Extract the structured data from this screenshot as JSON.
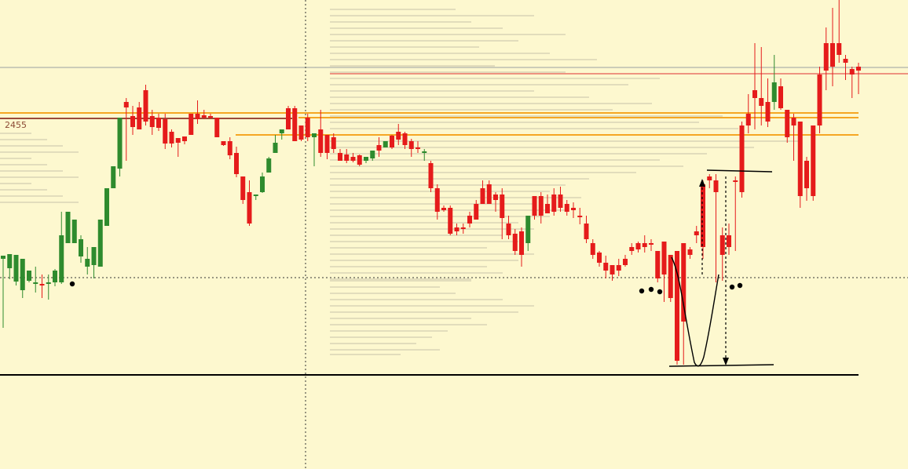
{
  "chart_data": {
    "type": "candlestick",
    "instrument_label": "2455",
    "colors": {
      "background": "#fdf8cf",
      "up_candle": "#2e8b2e",
      "down_candle": "#e51b1b",
      "volume_profile": "#c8c2a8",
      "crosshair": "#333333",
      "support_line": "#000000",
      "resistance_lines": "#f5a623",
      "upper_red_line": "#e03030",
      "brown_line": "#9b4a3a",
      "grey_line": "#9aa0a0"
    },
    "candles": [
      [
        418,
        330,
        326,
        360,
        356
      ],
      [
        345,
        342,
        324,
        356,
        350
      ],
      [
        352,
        359,
        325,
        364,
        358
      ],
      [
        378,
        370,
        330,
        380,
        380
      ],
      [
        350,
        358,
        345,
        360,
        355
      ],
      [
        340,
        362,
        360,
        373,
        370
      ],
      [
        350,
        362,
        362,
        377,
        380
      ],
      [
        350,
        362,
        360,
        380,
        382
      ],
      [
        343,
        360,
        345,
        365,
        360
      ],
      [
        270,
        360,
        300,
        362,
        345
      ],
      [
        300,
        310,
        270,
        285,
        280
      ],
      [
        282,
        310,
        280,
        285,
        305
      ],
      [
        300,
        327,
        305,
        335,
        300
      ],
      [
        315,
        340,
        330,
        350,
        340
      ],
      [
        320,
        338,
        315,
        355,
        335
      ],
      [
        330,
        340,
        280,
        340,
        280
      ],
      [
        282,
        288,
        240,
        285,
        240
      ],
      [
        238,
        240,
        212,
        240,
        212
      ],
      [
        210,
        215,
        150,
        225,
        150
      ],
      [
        125,
        130,
        137,
        140,
        205
      ],
      [
        135,
        148,
        162,
        170,
        172
      ],
      [
        130,
        137,
        165,
        165,
        160
      ],
      [
        108,
        115,
        155,
        160,
        153
      ],
      [
        140,
        148,
        162,
        170,
        172
      ],
      [
        145,
        150,
        163,
        165,
        167
      ],
      [
        145,
        152,
        183,
        187,
        190
      ],
      [
        165,
        168,
        183,
        185,
        188
      ],
      [
        200,
        176,
        182,
        180,
        190
      ],
      [
        175,
        174,
        180,
        184,
        178
      ],
      [
        145,
        145,
        172,
        172,
        155
      ],
      [
        128,
        145,
        152,
        158,
        155
      ],
      [
        140,
        147,
        150,
        152,
        152
      ],
      [
        145,
        148,
        150,
        152,
        152
      ],
      [
        150,
        150,
        175,
        175,
        175
      ],
      [
        180,
        180,
        185,
        186,
        185
      ],
      [
        175,
        180,
        198,
        203,
        198
      ],
      [
        187,
        195,
        222,
        226,
        222
      ],
      [
        225,
        225,
        255,
        260,
        260
      ],
      [
        230,
        245,
        285,
        288,
        287
      ],
      [
        248,
        250,
        248,
        250,
        255
      ],
      [
        228,
        245,
        225,
        246,
        220
      ],
      [
        200,
        220,
        202,
        220,
        218
      ],
      [
        172,
        195,
        182,
        195,
        180
      ],
      [
        165,
        170,
        165,
        178,
        168
      ],
      [
        135,
        138,
        165,
        165,
        150
      ],
      [
        135,
        138,
        180,
        180,
        180
      ],
      [
        160,
        160,
        178,
        180,
        178
      ],
      [
        145,
        150,
        175,
        180,
        170
      ],
      [
        212,
        175,
        170,
        190,
        170
      ],
      [
        140,
        165,
        195,
        200,
        198
      ],
      [
        172,
        172,
        195,
        195,
        203
      ],
      [
        170,
        175,
        190,
        195,
        195
      ],
      [
        190,
        195,
        205,
        205,
        203
      ],
      [
        190,
        197,
        205,
        208,
        208
      ],
      [
        195,
        200,
        205,
        207,
        206
      ],
      [
        197,
        198,
        210,
        212,
        210
      ],
      [
        200,
        205,
        200,
        208,
        205
      ],
      [
        200,
        202,
        192,
        205,
        198
      ],
      [
        175,
        185,
        192,
        195,
        200
      ],
      [
        185,
        188,
        180,
        188,
        181
      ],
      [
        172,
        173,
        188,
        190,
        188
      ],
      [
        158,
        168,
        178,
        185,
        178
      ],
      [
        168,
        170,
        185,
        190,
        188
      ],
      [
        177,
        180,
        190,
        195,
        200
      ],
      [
        180,
        188,
        190,
        195,
        195
      ],
      [
        190,
        195,
        193,
        205,
        198
      ],
      [
        205,
        208,
        240,
        245,
        245
      ],
      [
        235,
        240,
        270,
        275,
        280
      ],
      [
        262,
        265,
        268,
        270,
        268
      ],
      [
        262,
        265,
        298,
        300,
        300
      ],
      [
        285,
        290,
        295,
        300,
        300
      ],
      [
        285,
        290,
        290,
        298,
        296
      ],
      [
        270,
        275,
        285,
        290,
        288
      ],
      [
        255,
        260,
        280,
        280,
        280
      ],
      [
        230,
        240,
        260,
        260,
        255
      ],
      [
        230,
        235,
        260,
        260,
        250
      ],
      [
        245,
        248,
        255,
        270,
        255
      ],
      [
        240,
        248,
        278,
        280,
        305
      ],
      [
        275,
        285,
        300,
        305,
        305
      ],
      [
        292,
        298,
        320,
        325,
        325
      ],
      [
        290,
        295,
        325,
        330,
        340
      ],
      [
        300,
        310,
        275,
        310,
        320
      ],
      [
        250,
        250,
        275,
        280,
        280
      ],
      [
        245,
        250,
        275,
        275,
        285
      ],
      [
        248,
        260,
        272,
        272,
        265
      ],
      [
        240,
        248,
        270,
        270,
        275
      ],
      [
        238,
        248,
        265,
        270,
        270
      ],
      [
        255,
        260,
        270,
        275,
        270
      ],
      [
        258,
        265,
        268,
        278,
        278
      ],
      [
        265,
        275,
        275,
        280,
        286
      ],
      [
        275,
        285,
        305,
        310,
        310
      ],
      [
        305,
        310,
        325,
        328,
        330
      ],
      [
        320,
        322,
        335,
        340,
        340
      ],
      [
        326,
        335,
        345,
        350,
        355
      ],
      [
        338,
        338,
        350,
        355,
        358
      ],
      [
        330,
        338,
        345,
        352,
        340
      ],
      [
        325,
        330,
        338,
        340,
        340
      ],
      [
        310,
        315,
        320,
        325,
        320
      ],
      [
        308,
        310,
        318,
        322,
        318
      ],
      [
        300,
        310,
        315,
        322,
        322
      ],
      [
        305,
        310,
        310,
        320,
        320
      ],
      [
        320,
        320,
        355,
        360,
        360
      ],
      [
        308,
        308,
        350,
        352,
        385
      ],
      [
        325,
        325,
        380,
        385,
        385
      ],
      [
        320,
        320,
        460,
        465,
        465
      ],
      [
        310,
        310,
        410,
        415,
        465
      ],
      [
        315,
        318,
        325,
        330,
        325
      ],
      [
        288,
        295,
        300,
        310,
        300
      ],
      [
        230,
        235,
        315,
        325,
        330
      ],
      [
        222,
        225,
        230,
        240,
        240
      ],
      [
        222,
        230,
        245,
        265,
        360
      ],
      [
        290,
        300,
        325,
        330,
        358
      ],
      [
        285,
        300,
        315,
        322,
        325
      ],
      [
        225,
        230,
        232,
        320,
        320
      ],
      [
        155,
        160,
        245,
        250,
        252
      ],
      [
        120,
        145,
        160,
        165,
        170
      ],
      [
        55,
        115,
        125,
        160,
        165
      ],
      [
        60,
        125,
        135,
        150,
        160
      ],
      [
        100,
        130,
        155,
        160,
        162
      ],
      [
        70,
        130,
        105,
        140,
        108
      ],
      [
        100,
        110,
        138,
        140,
        140
      ],
      [
        140,
        140,
        175,
        180,
        182
      ],
      [
        145,
        150,
        160,
        205,
        205
      ],
      [
        155,
        155,
        250,
        260,
        265
      ],
      [
        200,
        205,
        240,
        250,
        256
      ],
      [
        160,
        160,
        250,
        255,
        256
      ],
      [
        85,
        95,
        160,
        170,
        170
      ],
      [
        35,
        55,
        90,
        95,
        115
      ],
      [
        10,
        55,
        85,
        95,
        110
      ],
      [
        0,
        55,
        70,
        78,
        80
      ],
      [
        70,
        75,
        80,
        100,
        102
      ],
      [
        85,
        88,
        95,
        100,
        125
      ],
      [
        80,
        85,
        90,
        95,
        120
      ]
    ],
    "levels": {
      "support": 478,
      "dotted_low": 354,
      "grey_high": 86,
      "red_high": 94,
      "orange_a": 144,
      "orange_b": 150,
      "orange_c": 172,
      "brown": 151
    }
  }
}
